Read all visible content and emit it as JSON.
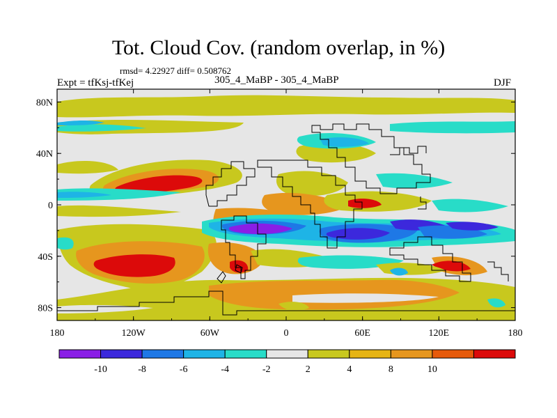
{
  "title": "Tot. Cloud Cov. (random overlap, in %)",
  "stats": "rmsd= 4.22927 diff= 0.508762",
  "expt": "Expt = tfKsj-tfKej",
  "cases": "305_4_MaBP - 305_4_MaBP",
  "season": "DJF",
  "map": {
    "lon_range": [
      -180,
      180
    ],
    "lat_range": [
      -90,
      90
    ],
    "lon_ticks": [
      {
        "value": -180,
        "label": "180"
      },
      {
        "value": -120,
        "label": "120W"
      },
      {
        "value": -60,
        "label": "60W"
      },
      {
        "value": 0,
        "label": "0"
      },
      {
        "value": 60,
        "label": "60E"
      },
      {
        "value": 120,
        "label": "120E"
      },
      {
        "value": 180,
        "label": "180"
      }
    ],
    "lat_ticks": [
      {
        "value": 80,
        "label": "80N"
      },
      {
        "value": 40,
        "label": "40N"
      },
      {
        "value": 0,
        "label": "0"
      },
      {
        "value": -40,
        "label": "40S"
      },
      {
        "value": -80,
        "label": "80S"
      }
    ]
  },
  "colorbar": {
    "colors": [
      "#8a1ee6",
      "#3c28dc",
      "#1e78e6",
      "#1eb4e6",
      "#28dcc8",
      "#e6e6e6",
      "#c8c81e",
      "#e6b414",
      "#e6961e",
      "#e65a0a",
      "#dc0a0a"
    ],
    "labels": [
      "-10",
      "-8",
      "-6",
      "-4",
      "-2",
      "2",
      "4",
      "8",
      "10"
    ],
    "label_boundaries": [
      1,
      2,
      3,
      4,
      5,
      6,
      7,
      8,
      9
    ]
  },
  "palette": {
    "neutral": "#e6e6e6",
    "yellow": "#c8c81e",
    "orange": "#e6961e",
    "red": "#dc0a0a",
    "cyan": "#28dcc8",
    "lightblue": "#1eb4e6",
    "blue": "#1e78e6",
    "purple": "#8a1ee6"
  }
}
